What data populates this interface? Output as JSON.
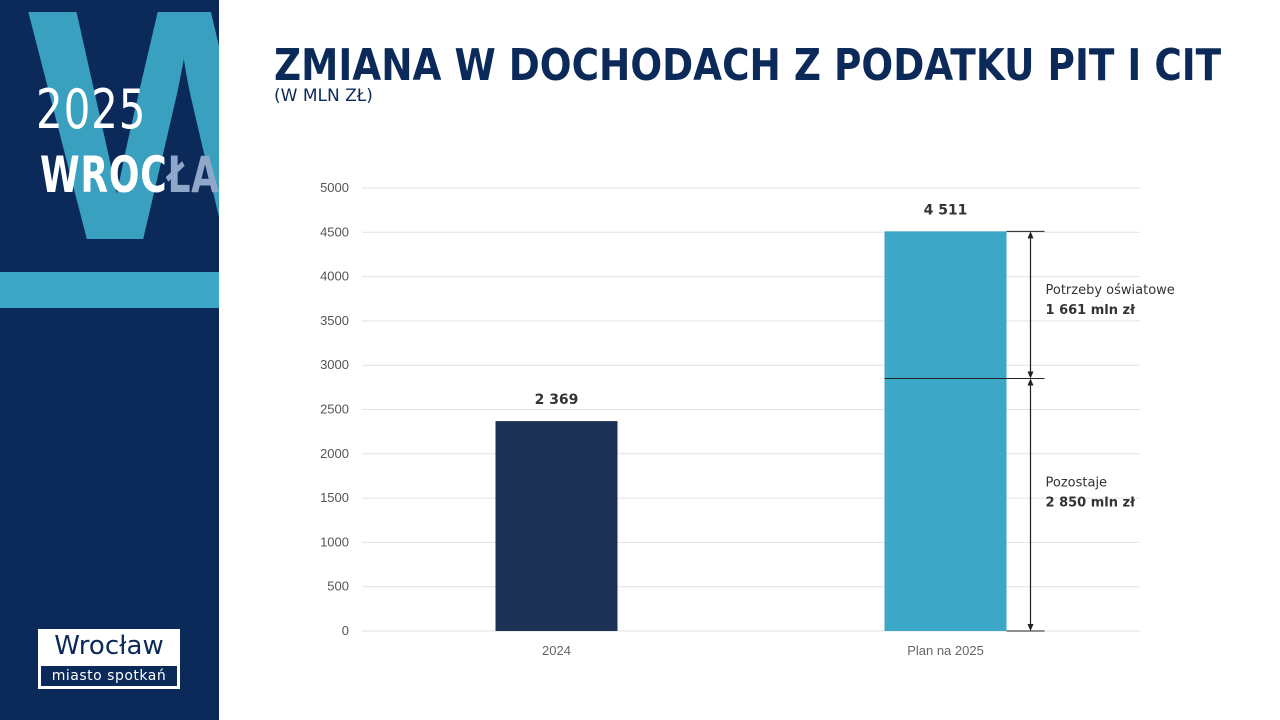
{
  "sidebar": {
    "year": "2025",
    "city_bright": "WROC",
    "city_faded": "ŁAW",
    "logo_main": "Wrocław",
    "logo_sub": "miasto spotkań"
  },
  "header": {
    "title": "ZMIANA W DOCHODACH Z PODATKU PIT I CIT",
    "subtitle": "(W MLN ZŁ)"
  },
  "colors": {
    "navy": "#0b2a5a",
    "bar_2024": "#1d3155",
    "bar_2025": "#3ca7c6",
    "grid": "#e2e2e2"
  },
  "chart_data": {
    "type": "bar",
    "title": "ZMIANA W DOCHODACH Z PODATKU PIT I CIT",
    "subtitle": "(W MLN ZŁ)",
    "categories": [
      "2024",
      "Plan na 2025"
    ],
    "values": [
      2369,
      4511
    ],
    "value_labels": [
      "2 369",
      "4 511"
    ],
    "ylim": [
      0,
      5000
    ],
    "yticks": [
      0,
      500,
      1000,
      1500,
      2000,
      2500,
      3000,
      3500,
      4000,
      4500,
      5000
    ],
    "grid": true,
    "split": {
      "category": "Plan na 2025",
      "segments": [
        {
          "label": "Pozostaje",
          "amount_text": "2 850 mln zł",
          "from": 0,
          "to": 2850
        },
        {
          "label": "Potrzeby oświatowe",
          "amount_text": "1 661 mln zł",
          "from": 2850,
          "to": 4511
        }
      ]
    }
  }
}
